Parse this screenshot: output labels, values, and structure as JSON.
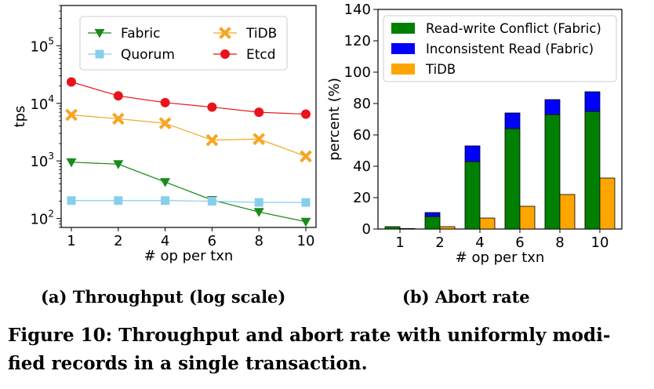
{
  "figure_caption": {
    "line1": "Figure 10: Throughput and abort rate with uniformly modi-",
    "line2": "fied records in a single transaction."
  },
  "chart_data": [
    {
      "type": "line",
      "caption": "(a) Throughput (log scale)",
      "xlabel": "# op per txn",
      "ylabel": "tps",
      "yscale": "log",
      "ylim": [
        70,
        500000
      ],
      "categories": [
        "1",
        "2",
        "4",
        "6",
        "8",
        "10"
      ],
      "yticks": [
        {
          "value": 100,
          "base": "10",
          "exp": "2"
        },
        {
          "value": 1000,
          "base": "10",
          "exp": "3"
        },
        {
          "value": 10000,
          "base": "10",
          "exp": "4"
        },
        {
          "value": 100000,
          "base": "10",
          "exp": "5"
        }
      ],
      "legend_position": "top",
      "grid": false,
      "series": [
        {
          "name": "Fabric",
          "color": "#1a8a1a",
          "marker": "triangle-down",
          "values": [
            950,
            880,
            430,
            210,
            130,
            88
          ]
        },
        {
          "name": "Quorum",
          "color": "#87ceeb",
          "marker": "square",
          "values": [
            205,
            205,
            205,
            200,
            190,
            190
          ]
        },
        {
          "name": "TiDB",
          "color": "#f5a623",
          "marker": "x",
          "values": [
            6300,
            5400,
            4500,
            2300,
            2400,
            1200
          ]
        },
        {
          "name": "Etcd",
          "color": "#e8141a",
          "marker": "circle",
          "values": [
            23500,
            13500,
            10300,
            8600,
            7000,
            6500
          ]
        }
      ]
    },
    {
      "type": "bar",
      "caption": "(b) Abort rate",
      "xlabel": "# op per txn",
      "ylabel": "percent (%)",
      "ylim": [
        0,
        140
      ],
      "yticks": [
        0,
        20,
        40,
        60,
        80,
        100,
        120,
        140
      ],
      "categories": [
        "1",
        "2",
        "4",
        "6",
        "8",
        "10"
      ],
      "legend_position": "top-left",
      "grid": false,
      "series": [
        {
          "name": "Read-write Conflict (Fabric)",
          "color": "#008000",
          "stack": "fabric",
          "values": [
            1.5,
            8,
            43,
            64,
            73,
            75
          ]
        },
        {
          "name": "Inconsistent Read (Fabric)",
          "color": "#0000ff",
          "stack": "fabric",
          "values": [
            0,
            2.5,
            10,
            10,
            9.5,
            12.5
          ]
        },
        {
          "name": "TiDB",
          "color": "#ffa500",
          "stack": "tidb",
          "values": [
            0.3,
            1.5,
            7,
            14.5,
            22,
            32.5
          ]
        }
      ]
    }
  ]
}
